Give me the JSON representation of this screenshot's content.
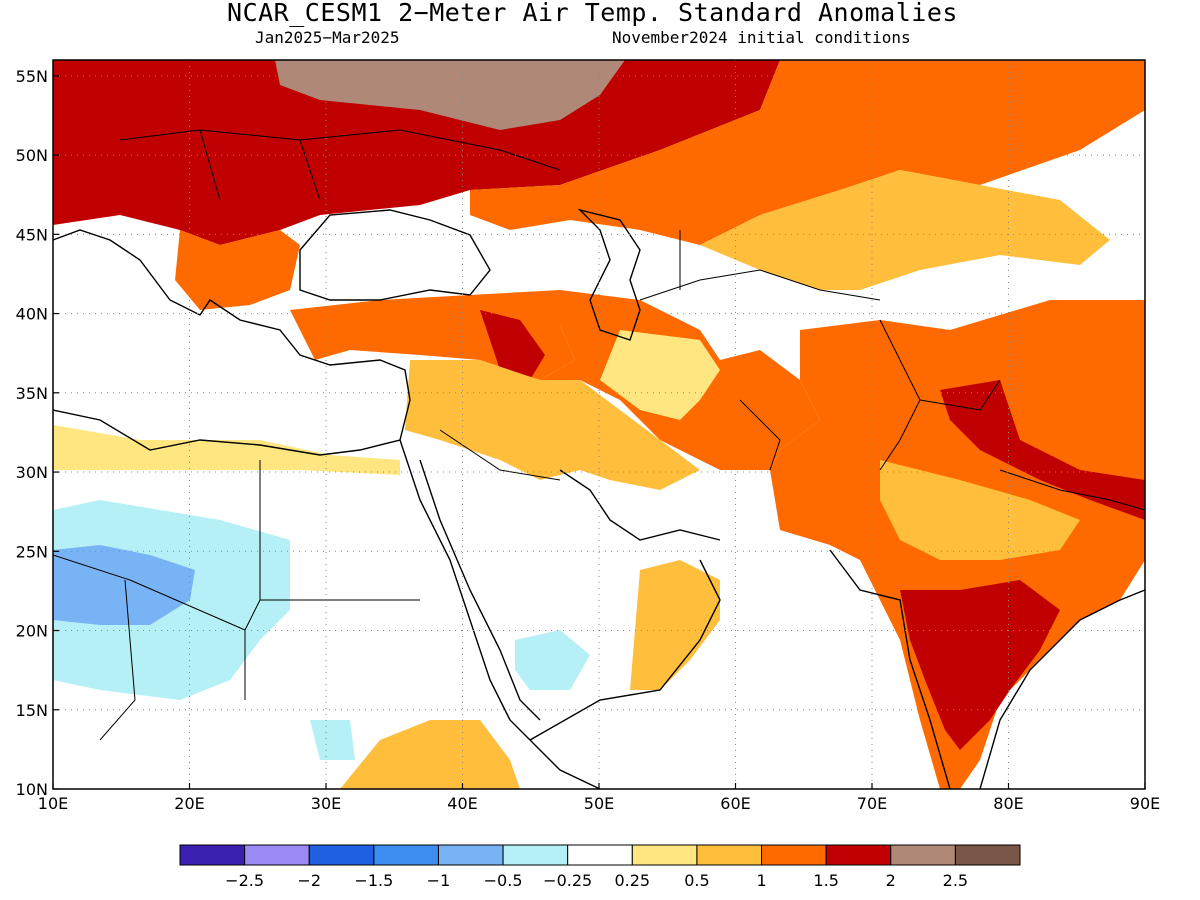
{
  "title": "NCAR_CESM1 2−Meter Air Temp. Standard Anomalies",
  "subtitle_left": "Jan2025−Mar2025",
  "subtitle_right": "November2024 initial conditions",
  "map": {
    "lon_range": [
      10,
      90
    ],
    "lat_range": [
      10,
      56
    ],
    "lon_labels": [
      "10E",
      "20E",
      "30E",
      "40E",
      "50E",
      "60E",
      "70E",
      "80E",
      "90E"
    ],
    "lat_labels": [
      "10N",
      "15N",
      "20N",
      "25N",
      "30N",
      "35N",
      "40N",
      "45N",
      "50N",
      "55N"
    ],
    "grid": "dotted"
  },
  "colorbar": {
    "colors": [
      "#3a1fb0",
      "#9b89f5",
      "#1f5fe0",
      "#3d8ef0",
      "#78b4f5",
      "#b4f0f5",
      "#ffffff",
      "#ffe680",
      "#ffbe3c",
      "#ff6a00",
      "#c00000",
      "#b08878",
      "#7a5646"
    ],
    "labels": [
      "−2.5",
      "−2",
      "−1.5",
      "−1",
      "−0.5",
      "−0.25",
      "0.25",
      "0.5",
      "1",
      "1.5",
      "2",
      "2.5"
    ]
  }
}
